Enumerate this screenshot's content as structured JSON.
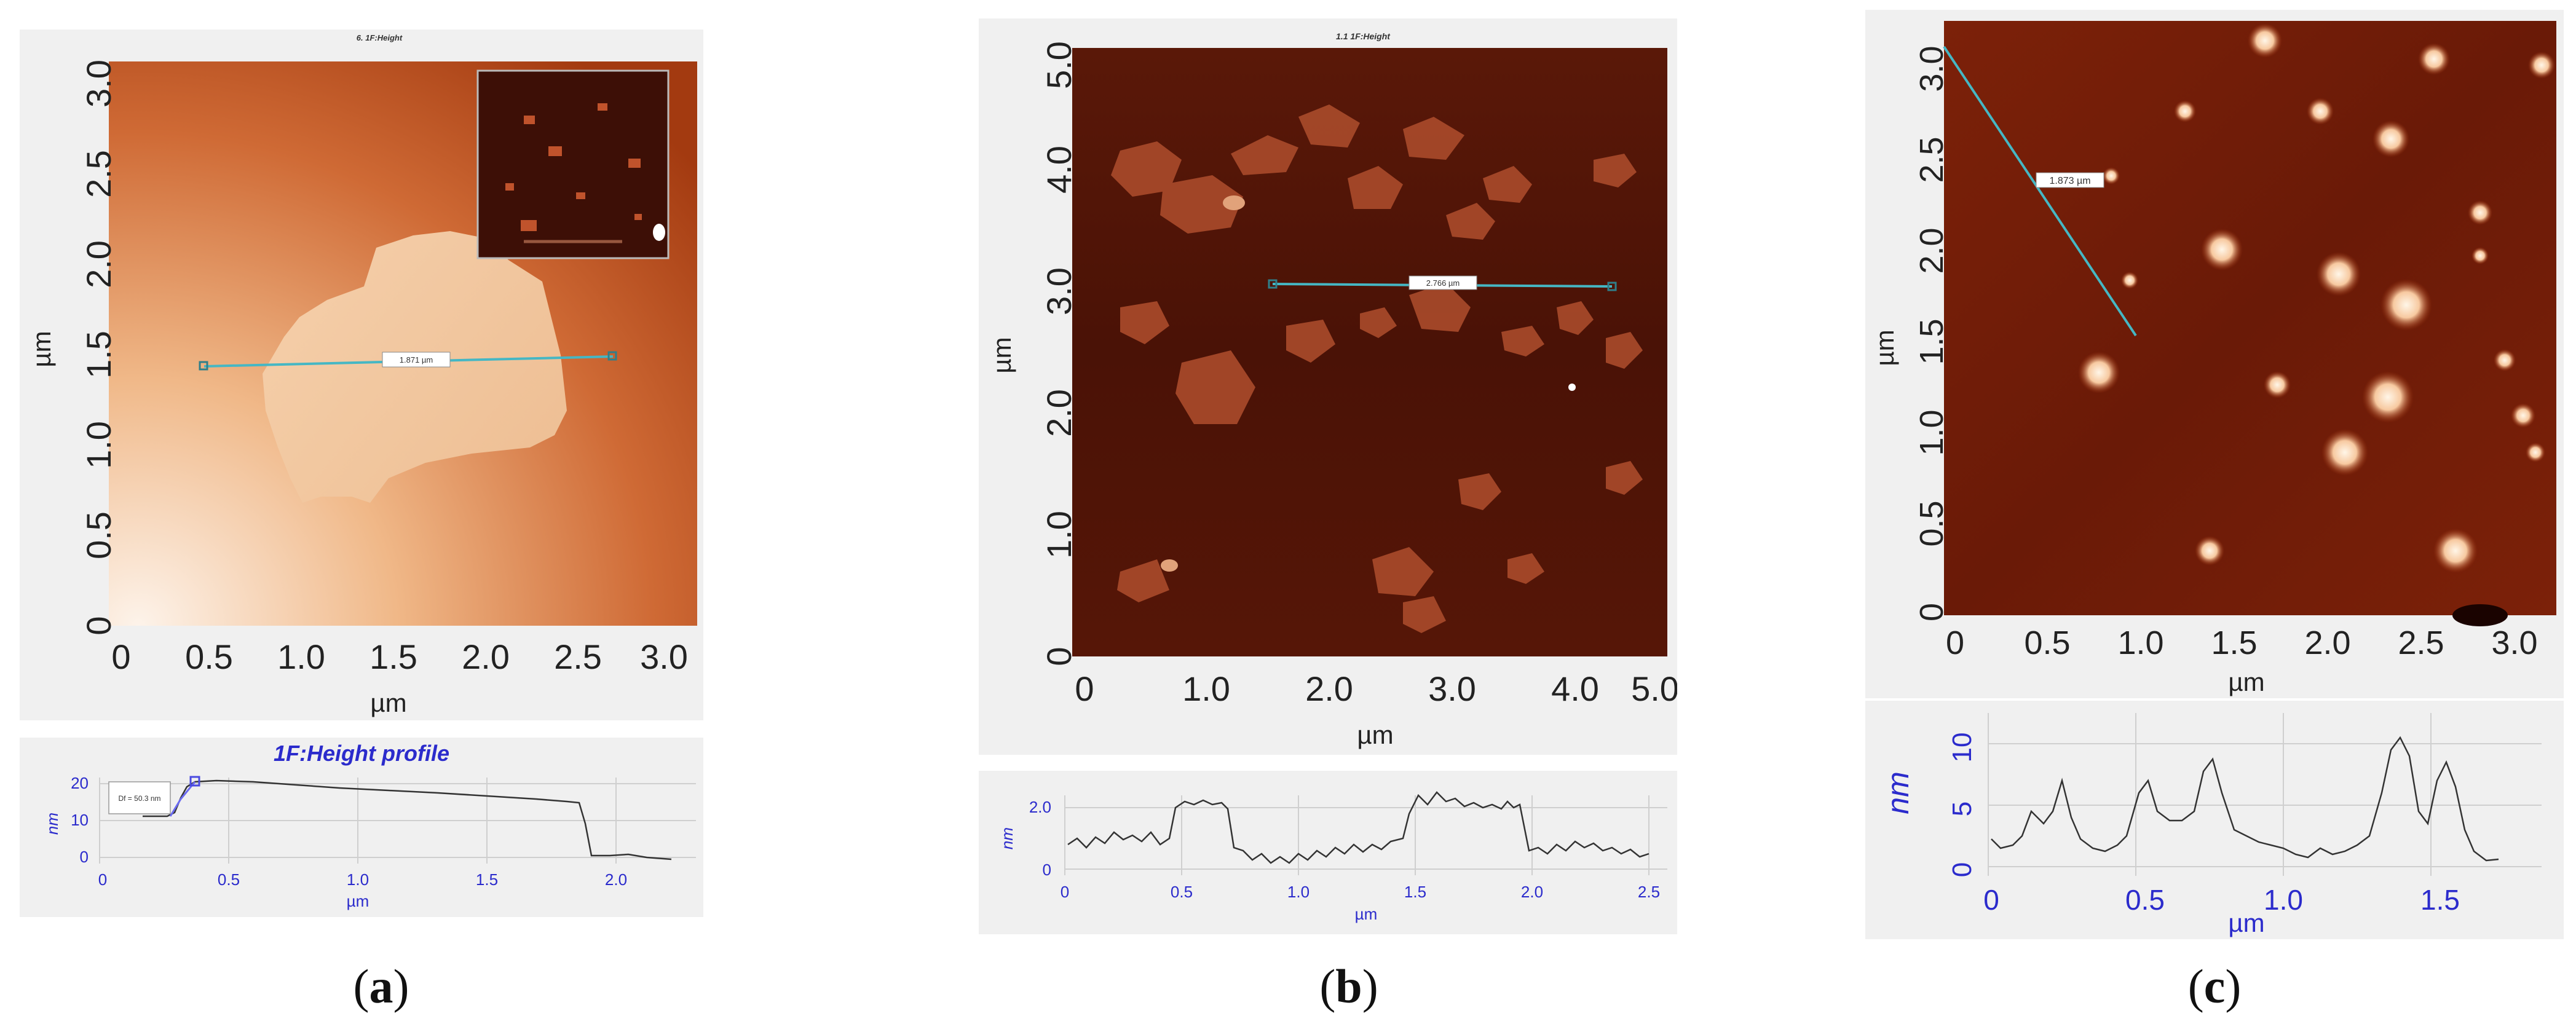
{
  "figure": {
    "panels": [
      {
        "id": "a",
        "caption_open": "(",
        "caption_letter": "a",
        "caption_close": ")",
        "image_title": "6. 1F:Height",
        "map_colors": [
          "#7a1f05",
          "#c5531d",
          "#f2c7a3"
        ],
        "x_axis": {
          "label": "µm",
          "ticks": [
            "0",
            "0.5",
            "1.0",
            "1.5",
            "2.0",
            "2.5",
            "3.0"
          ]
        },
        "y_axis": {
          "label": "µm",
          "ticks": [
            "0",
            "0.5",
            "1.0",
            "1.5",
            "2.0",
            "2.5",
            "3.0"
          ]
        },
        "measure_label": "1.871 µm",
        "profile": {
          "title": "1F:Height profile",
          "y_unit": "nm",
          "y_ticks": [
            "0",
            "10",
            "20"
          ],
          "x_unit": "µm",
          "x_ticks": [
            "0",
            "0.5",
            "1.0",
            "1.5",
            "2.0"
          ],
          "annotation": "Df = 50.3 nm"
        }
      },
      {
        "id": "b",
        "caption_open": "(",
        "caption_letter": "b",
        "caption_close": ")",
        "image_title": "1.1 1F:Height",
        "map_colors": [
          "#4a1206",
          "#7b2a14",
          "#c26a45"
        ],
        "x_axis": {
          "label": "µm",
          "ticks": [
            "0",
            "1.0",
            "2.0",
            "3.0",
            "4.0",
            "5.0"
          ]
        },
        "y_axis": {
          "label": "µm",
          "ticks": [
            "0",
            "1.0",
            "2.0",
            "3.0",
            "4.0",
            "5.0"
          ]
        },
        "measure_label": "2.766 µm",
        "profile": {
          "y_unit": "nm",
          "y_ticks": [
            "0",
            "2.0"
          ],
          "x_unit": "µm",
          "x_ticks": [
            "0",
            "0.5",
            "1.0",
            "1.5",
            "2.0",
            "2.5"
          ]
        }
      },
      {
        "id": "c",
        "caption_open": "(",
        "caption_letter": "c",
        "caption_close": ")",
        "map_colors": [
          "#5a1406",
          "#9c2e0c",
          "#fff0dc"
        ],
        "x_axis": {
          "label": "µm",
          "ticks": [
            "0",
            "0.5",
            "1.0",
            "1.5",
            "2.0",
            "2.5",
            "3.0"
          ]
        },
        "y_axis": {
          "label": "µm",
          "ticks": [
            "0",
            "0.5",
            "1.0",
            "1.5",
            "2.0",
            "2.5",
            "3.0"
          ]
        },
        "measure_label": "1.873 µm",
        "profile": {
          "y_unit": "nm",
          "y_ticks": [
            "0",
            "5",
            "10"
          ],
          "x_unit": "µm",
          "x_ticks": [
            "0",
            "0.5",
            "1.0",
            "1.5"
          ]
        }
      }
    ]
  }
}
